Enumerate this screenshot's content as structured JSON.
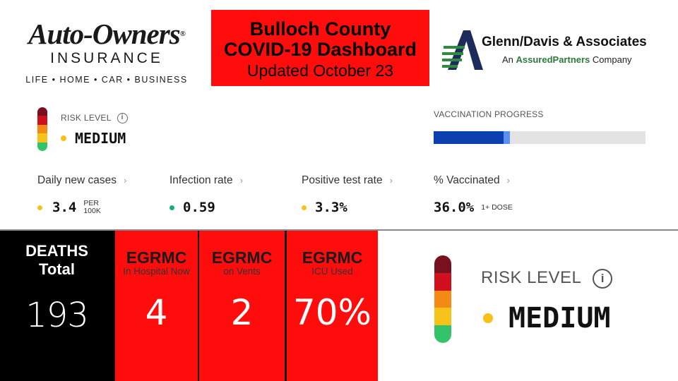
{
  "header": {
    "left_logo": {
      "name": "Auto-Owners",
      "registered": "®",
      "line2": "INSURANCE",
      "tagline": "LIFE • HOME • CAR • BUSINESS"
    },
    "title": {
      "line1": "Bulloch County",
      "line2": "COVID-19 Dashboard",
      "updated": "Updated October 23"
    },
    "right_logo": {
      "name": "Glenn/Davis & Associates",
      "sub_prefix": "An ",
      "sub_brand": "AssuredPartners",
      "sub_suffix": " Company"
    }
  },
  "risk": {
    "label": "RISK LEVEL",
    "info": "i",
    "value": "MEDIUM",
    "dot_color": "#f5c21b",
    "scale_colors": [
      "#7a0f1e",
      "#d0101e",
      "#f38a16",
      "#f7c21a",
      "#33c46b"
    ]
  },
  "vaccination": {
    "label": "VACCINATION PROGRESS",
    "dose1_fraction": 0.36,
    "dose2_fraction": 0.33,
    "dark_color": "#0d3fb0",
    "light_color": "#5b8ff0"
  },
  "metrics": [
    {
      "label": "Daily new cases",
      "value": "3.4",
      "unit_line1": "PER",
      "unit_line2": "100K",
      "dot_color": "#f5c21b"
    },
    {
      "label": "Infection rate",
      "value": "0.59",
      "dot_color": "#14b073"
    },
    {
      "label": "Positive test rate",
      "value": "3.3%",
      "dot_color": "#f5c21b"
    },
    {
      "label": "% Vaccinated",
      "value": "36.0%",
      "unit_line1": "1+ DOSE"
    }
  ],
  "chevron": "›",
  "tiles": {
    "deaths": {
      "line1": "DEATHS",
      "line2": "Total",
      "value": "193"
    },
    "hospital": {
      "title": "EGRMC",
      "sub": "In Hospital Now",
      "value": "4"
    },
    "vents": {
      "title": "EGRMC",
      "sub": "on Vents",
      "value": "2"
    },
    "icu": {
      "title": "EGRMC",
      "sub": "ICU Used",
      "value": "70%"
    }
  }
}
